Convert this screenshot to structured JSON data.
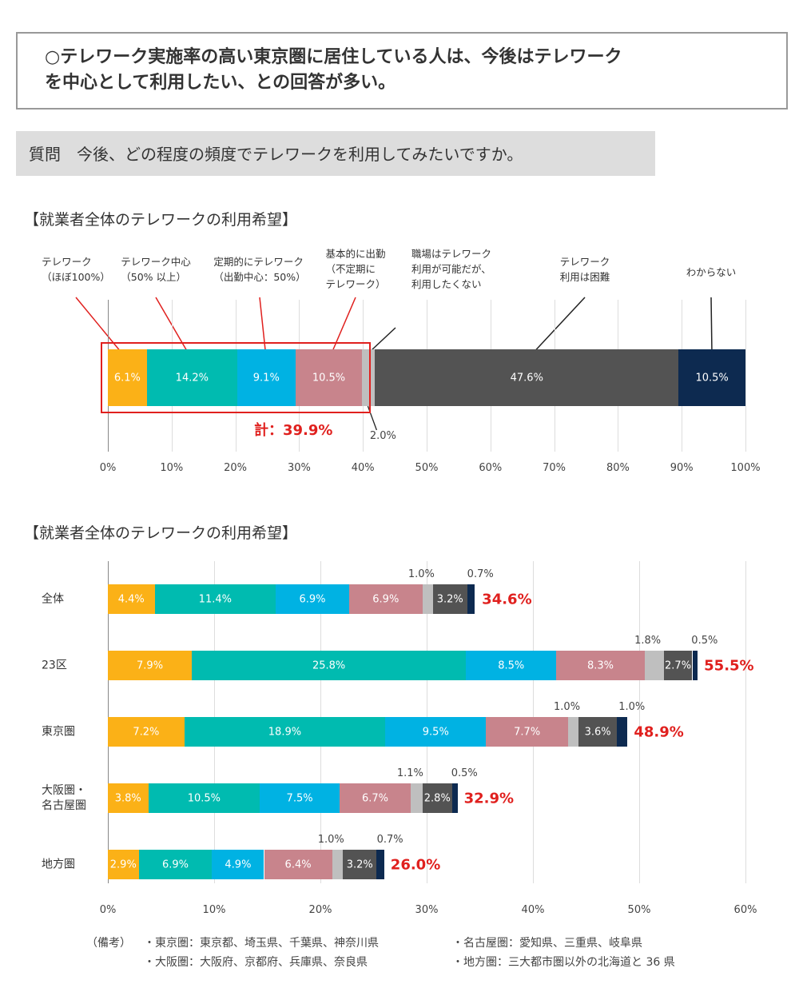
{
  "header": {
    "lines": [
      "○テレワーク実施率の高い東京圏に居住している人は、今後はテレワーク",
      "を中心として利用したい、との回答が多い。"
    ]
  },
  "question": "質問　今後、どの程度の頻度でテレワークを利用してみたいですか。",
  "chart_data": [
    {
      "type": "stacked_bar",
      "title": "【就業者全体のテレワークの利用希望】",
      "series": [
        {
          "name": "テレワーク\n（ほぼ100%）",
          "color": "#fbb117",
          "values": [
            6.1
          ],
          "value_labels": [
            "6.1%"
          ]
        },
        {
          "name": "テレワーク中心\n（50% 以上）",
          "color": "#00bbb0",
          "values": [
            14.2
          ],
          "value_labels": [
            "14.2%"
          ]
        },
        {
          "name": "定期的にテレワーク\n（出勤中心：50%）",
          "color": "#00b2e3",
          "values": [
            9.1
          ],
          "value_labels": [
            "9.1%"
          ]
        },
        {
          "name": "基本的に出勤\n（不定期に\nテレワーク）",
          "color": "#c8848c",
          "values": [
            10.5
          ],
          "value_labels": [
            "10.5%"
          ]
        },
        {
          "name": "職場はテレワーク\n利用が可能だが、\n利用したくない",
          "color": "#bfbfbf",
          "values": [
            2.0
          ],
          "value_labels": [
            "2.0%"
          ]
        },
        {
          "name": "テレワーク\n利用は困難",
          "color": "#535353",
          "values": [
            47.6
          ],
          "value_labels": [
            "47.6%"
          ]
        },
        {
          "name": "わからない",
          "color": "#0d2a50",
          "values": [
            10.5
          ],
          "value_labels": [
            "10.5%"
          ]
        }
      ],
      "annotations": [
        "計：39.9%"
      ],
      "xlim": [
        0,
        100
      ],
      "xticks": [
        {
          "value": 0,
          "label": "0%"
        },
        {
          "value": 10,
          "label": "10%"
        },
        {
          "value": 20,
          "label": "20%"
        },
        {
          "value": 30,
          "label": "30%"
        },
        {
          "value": 40,
          "label": "40%"
        },
        {
          "value": 50,
          "label": "50%"
        },
        {
          "value": 60,
          "label": "60%"
        },
        {
          "value": 70,
          "label": "70%"
        },
        {
          "value": 80,
          "label": "80%"
        },
        {
          "value": 90,
          "label": "90%"
        },
        {
          "value": 100,
          "label": "100%"
        }
      ],
      "grid": true
    },
    {
      "type": "stacked_bar",
      "title": "【就業者全体のテレワークの利用希望】",
      "categories": [
        "全体",
        "23区",
        "東京圏",
        "大阪圏・\n名古屋圏",
        "地方圏"
      ],
      "series": [
        {
          "color": "#fbb117",
          "values": [
            4.4,
            7.9,
            7.2,
            3.8,
            2.9
          ],
          "value_labels": [
            "4.4%",
            "7.9%",
            "7.2%",
            "3.8%",
            "2.9%"
          ]
        },
        {
          "color": "#00bbb0",
          "values": [
            11.4,
            25.8,
            18.9,
            10.5,
            6.9
          ],
          "value_labels": [
            "11.4%",
            "25.8%",
            "18.9%",
            "10.5%",
            "6.9%"
          ]
        },
        {
          "color": "#00b2e3",
          "values": [
            6.9,
            8.5,
            9.5,
            7.5,
            4.9
          ],
          "value_labels": [
            "6.9%",
            "8.5%",
            "9.5%",
            "7.5%",
            "4.9%"
          ]
        },
        {
          "color": "#c8848c",
          "values": [
            6.9,
            8.3,
            7.7,
            6.7,
            6.4
          ],
          "value_labels": [
            "6.9%",
            "8.3%",
            "7.7%",
            "6.7%",
            "6.4%"
          ]
        },
        {
          "color": "#bfbfbf",
          "values": [
            1.0,
            1.8,
            1.0,
            1.1,
            1.0
          ],
          "value_labels": [
            "1.0%",
            "1.8%",
            "1.0%",
            "1.1%",
            "1.0%"
          ]
        },
        {
          "color": "#535353",
          "values": [
            3.2,
            2.7,
            3.6,
            2.8,
            3.2
          ],
          "value_labels": [
            "3.2%",
            "2.7%",
            "3.6%",
            "2.8%",
            "3.2%"
          ]
        },
        {
          "color": "#0d2a50",
          "values": [
            0.7,
            0.5,
            1.0,
            0.5,
            0.7
          ],
          "value_labels": [
            "0.7%",
            "0.5%",
            "1.0%",
            "0.5%",
            "0.7%"
          ]
        }
      ],
      "totals": [
        34.6,
        55.5,
        48.9,
        32.9,
        26.0
      ],
      "total_labels": [
        "34.6%",
        "55.5%",
        "48.9%",
        "32.9%",
        "26.0%"
      ],
      "xlim": [
        0,
        60
      ],
      "xticks": [
        {
          "value": 0,
          "label": "0%"
        },
        {
          "value": 10,
          "label": "10%"
        },
        {
          "value": 20,
          "label": "20%"
        },
        {
          "value": 30,
          "label": "30%"
        },
        {
          "value": 40,
          "label": "40%"
        },
        {
          "value": 50,
          "label": "50%"
        },
        {
          "value": 60,
          "label": "60%"
        }
      ],
      "grid": true
    }
  ],
  "notes": {
    "label": "（備考）",
    "items": [
      "・東京圏：東京都、埼玉県、千葉県、神奈川県",
      "・名古屋圏：愛知県、三重県、岐阜県",
      "・大阪圏：大阪府、京都府、兵庫県、奈良県",
      "・地方圏：三大都市圏以外の北海道と 36 県"
    ]
  }
}
